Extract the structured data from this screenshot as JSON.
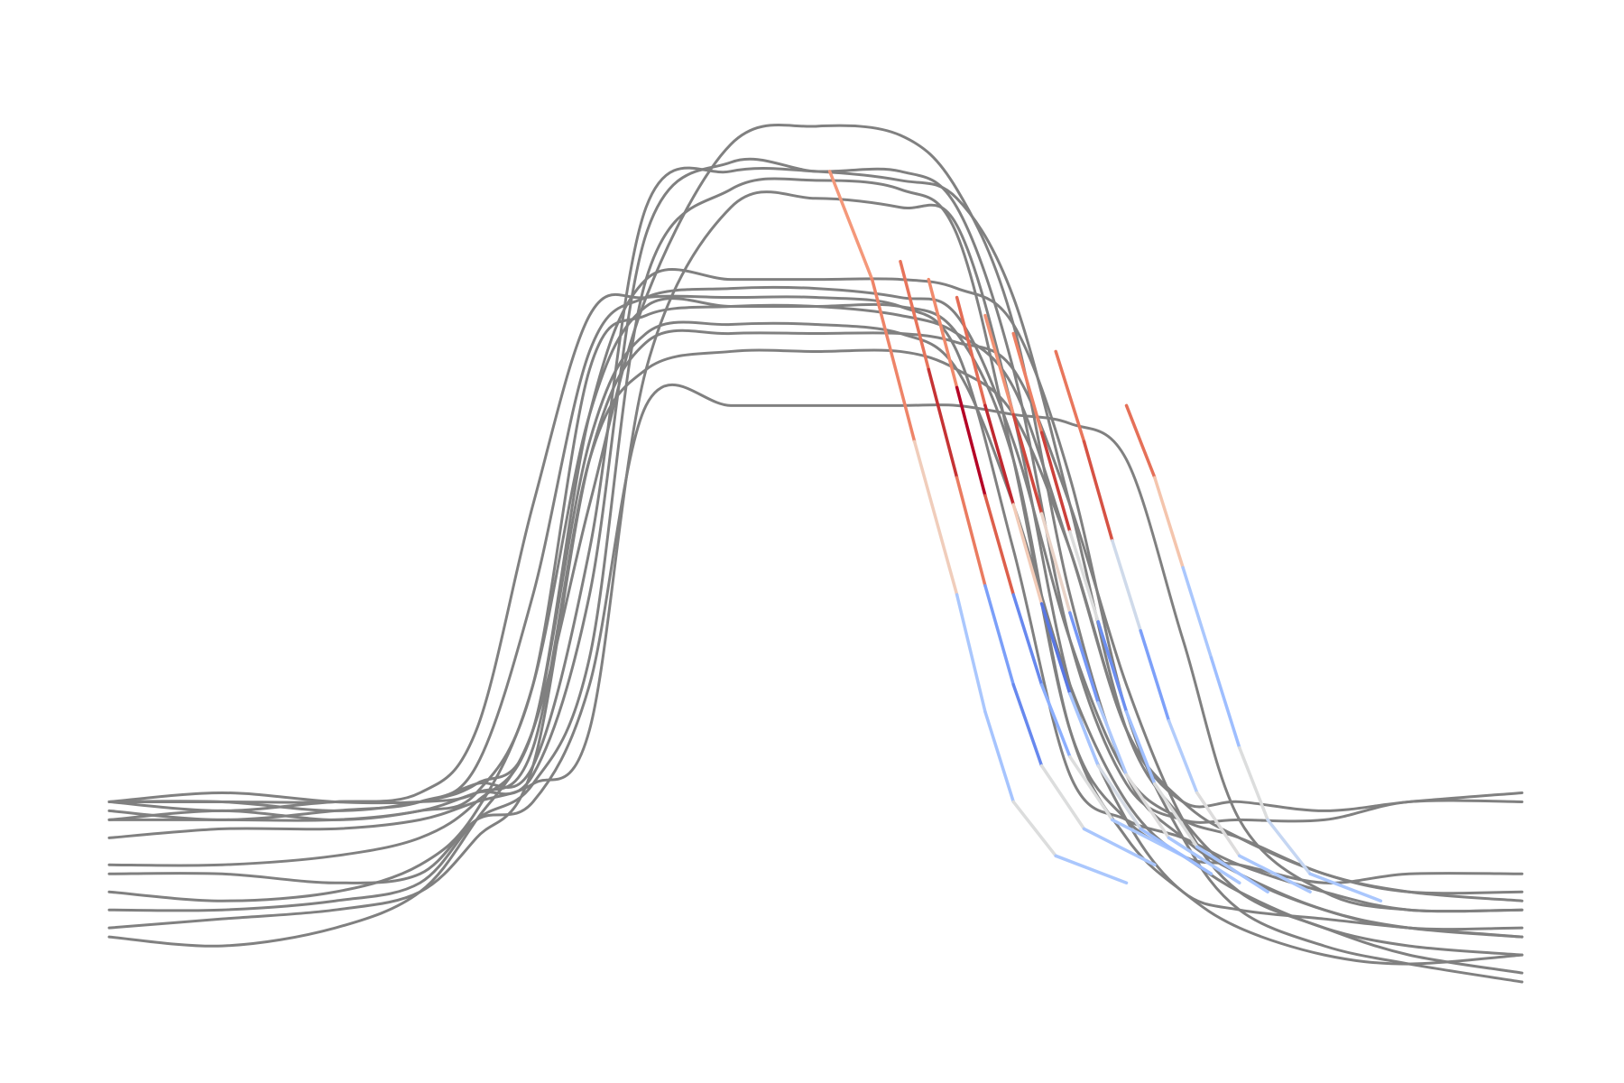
{
  "chart_data": {
    "type": "line",
    "xlim": [
      0,
      100
    ],
    "ylim": [
      0,
      100
    ],
    "x": [
      0,
      8,
      16,
      22,
      26,
      30,
      34,
      38,
      44,
      50,
      56,
      60,
      64,
      68,
      72,
      76,
      80,
      86,
      92,
      100
    ],
    "series": [
      {
        "color": "#808080",
        "values": [
          22,
          22,
          22,
          23,
          30,
          55,
          76,
          78,
          78,
          78,
          77,
          72,
          50,
          25,
          20,
          18,
          15,
          12,
          10,
          10
        ]
      },
      {
        "color": "#808080",
        "values": [
          21,
          20,
          21,
          22,
          26,
          45,
          72,
          78,
          79,
          79,
          78,
          76,
          62,
          40,
          25,
          20,
          18,
          14,
          12,
          11
        ]
      },
      {
        "color": "#808080",
        "values": [
          12,
          11,
          12,
          15,
          21,
          35,
          65,
          77,
          77,
          77,
          77,
          74,
          60,
          30,
          18,
          12,
          8,
          5,
          4,
          5
        ]
      },
      {
        "color": "#808080",
        "values": [
          20,
          21,
          20,
          21,
          23,
          25,
          45,
          85,
          93,
          92,
          92,
          88,
          70,
          40,
          24,
          20,
          20,
          20,
          22,
          22
        ]
      },
      {
        "color": "#808080",
        "values": [
          10,
          10,
          11,
          13,
          20,
          24,
          38,
          80,
          90,
          91,
          90,
          85,
          60,
          30,
          20,
          16,
          12,
          8,
          6,
          5
        ]
      },
      {
        "color": "#808080",
        "values": [
          22,
          23,
          22,
          22,
          23,
          28,
          60,
          70,
          72,
          72,
          72,
          70,
          65,
          50,
          30,
          22,
          22,
          21,
          22,
          23
        ]
      },
      {
        "color": "#808080",
        "values": [
          8,
          9,
          10,
          12,
          18,
          26,
          60,
          73,
          74,
          74,
          74,
          73,
          70,
          55,
          35,
          20,
          12,
          8,
          5,
          3
        ]
      },
      {
        "color": "#808080",
        "values": [
          18,
          19,
          19,
          20,
          22,
          24,
          30,
          70,
          88,
          89,
          88,
          86,
          65,
          35,
          20,
          12,
          10,
          9,
          8,
          7
        ]
      },
      {
        "color": "#808080",
        "values": [
          14,
          14,
          13,
          14,
          20,
          22,
          35,
          66,
          66,
          66,
          66,
          66,
          65,
          64,
          60,
          40,
          20,
          12,
          10,
          10
        ]
      },
      {
        "color": "#808080",
        "values": [
          22,
          22,
          21,
          22,
          24,
          30,
          65,
          80,
          80,
          80,
          80,
          79,
          75,
          58,
          32,
          18,
          10,
          6,
          4,
          2
        ]
      },
      {
        "color": "#808080",
        "values": [
          7,
          6,
          8,
          12,
          20,
          30,
          55,
          78,
          95,
          97,
          96,
          90,
          75,
          45,
          25,
          18,
          14,
          10,
          8,
          7
        ]
      },
      {
        "color": "#808080",
        "values": [
          20,
          20,
          20,
          21,
          23,
          35,
          70,
          76,
          77,
          77,
          76,
          74,
          68,
          50,
          30,
          22,
          18,
          14,
          12,
          12
        ]
      },
      {
        "color": "#808080",
        "values": [
          15,
          15,
          16,
          18,
          22,
          30,
          62,
          74,
          75,
          75,
          74,
          70,
          55,
          35,
          22,
          16,
          15,
          13,
          14,
          14
        ]
      },
      {
        "color": "#808080",
        "values": [
          22,
          21,
          22,
          22,
          24,
          26,
          50,
          88,
          92,
          92,
          91,
          89,
          78,
          55,
          30,
          20,
          14,
          10,
          8,
          8
        ]
      }
    ],
    "colored_series": [
      {
        "x": [
          51,
          54,
          57,
          60,
          62,
          64,
          67,
          72
        ],
        "values": [
          92,
          80,
          62,
          45,
          32,
          22,
          16,
          13
        ],
        "colors": [
          "#f4987a",
          "#ee8468",
          "#f0cdbb",
          "#aac7fd",
          "#a6c4fe",
          "#dcdddd",
          "#aac7fd"
        ]
      },
      {
        "x": [
          56,
          58,
          60,
          62,
          64,
          66,
          69,
          74
        ],
        "values": [
          82,
          70,
          58,
          46,
          35,
          26,
          19,
          15
        ],
        "colors": [
          "#e7745b",
          "#c53334",
          "#ea7b60",
          "#7b9ff9",
          "#6788ee",
          "#dcdddd",
          "#a9c6fd"
        ]
      },
      {
        "x": [
          58,
          60,
          62,
          64,
          66,
          68,
          71,
          76
        ],
        "values": [
          80,
          68,
          56,
          45,
          35,
          27,
          20,
          16
        ],
        "colors": [
          "#f08a6c",
          "#b40426",
          "#dd5f4b",
          "#6788ee",
          "#8caffe",
          "#dcdddd",
          "#aac7fd"
        ]
      },
      {
        "x": [
          60,
          62,
          64,
          66,
          68,
          70,
          73,
          78
        ],
        "values": [
          78,
          66,
          55,
          44,
          34,
          26,
          19,
          14
        ],
        "colors": [
          "#e36c55",
          "#c0282f",
          "#f2cbb7",
          "#5977e3",
          "#a6c4fe",
          "#d5dbe5",
          "#9ebeff"
        ]
      },
      {
        "x": [
          62,
          64,
          66,
          68,
          70,
          72,
          75,
          80
        ],
        "values": [
          76,
          65,
          54,
          43,
          33,
          25,
          18,
          13
        ],
        "colors": [
          "#f29274",
          "#d0473d",
          "#ead4c8",
          "#7597f6",
          "#aec9fc",
          "#dddcdc",
          "#aac7fd"
        ]
      },
      {
        "x": [
          64,
          66,
          68,
          70,
          72,
          74,
          77,
          82
        ],
        "values": [
          74,
          63,
          52,
          42,
          32,
          24,
          17,
          12
        ],
        "colors": [
          "#ec7f63",
          "#cc403a",
          "#dcdddd",
          "#6c8ff1",
          "#9fbfff",
          "#dcdddd",
          "#a6c4fe"
        ]
      },
      {
        "x": [
          67,
          69,
          71,
          73,
          75,
          77,
          80,
          85
        ],
        "values": [
          72,
          62,
          51,
          41,
          31,
          23,
          16,
          12
        ],
        "colors": [
          "#e8765c",
          "#d65244",
          "#cfdaea",
          "#7da0f9",
          "#b2ccfb",
          "#dddcdc",
          "#aac7fd"
        ]
      },
      {
        "x": [
          72,
          74,
          76,
          78,
          80,
          82,
          85,
          90
        ],
        "values": [
          66,
          58,
          48,
          38,
          28,
          20,
          14,
          11
        ],
        "colors": [
          "#e57058",
          "#f4c5ad",
          "#aac7fd",
          "#9ebeff",
          "#dcdddd",
          "#c5d6f2",
          "#aac7fd"
        ]
      }
    ]
  }
}
